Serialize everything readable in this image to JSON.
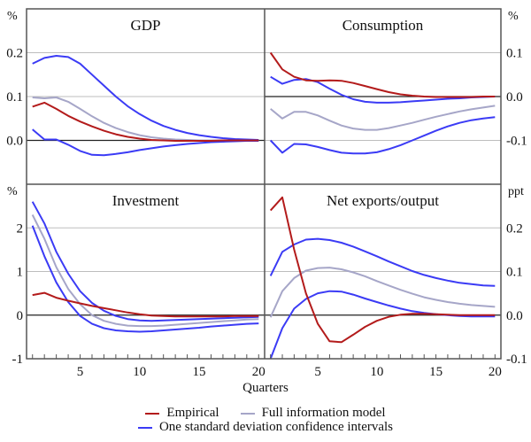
{
  "chart_data": [
    {
      "type": "line",
      "title": "GDP",
      "unit_label": "%",
      "axis_side": "left",
      "x": [
        1,
        2,
        3,
        4,
        5,
        6,
        7,
        8,
        9,
        10,
        11,
        12,
        13,
        14,
        15,
        16,
        17,
        18,
        19,
        20
      ],
      "ylim": [
        -0.1,
        0.3
      ],
      "yticks": [
        0.0,
        0.1,
        0.2
      ],
      "ytick_labels": [
        "0.0",
        "0.1",
        "0.2"
      ],
      "series": [
        {
          "name": "Upper confidence interval",
          "key": "ci",
          "values": [
            0.175,
            0.188,
            0.193,
            0.19,
            0.175,
            0.15,
            0.125,
            0.1,
            0.078,
            0.06,
            0.045,
            0.033,
            0.024,
            0.017,
            0.012,
            0.008,
            0.005,
            0.003,
            0.002,
            0.001
          ]
        },
        {
          "name": "Full information model",
          "key": "model",
          "values": [
            0.098,
            0.096,
            0.098,
            0.088,
            0.072,
            0.055,
            0.04,
            0.028,
            0.019,
            0.012,
            0.007,
            0.004,
            0.002,
            0.001,
            0,
            0,
            0,
            0,
            0,
            0
          ]
        },
        {
          "name": "Empirical",
          "key": "empirical",
          "values": [
            0.077,
            0.086,
            0.072,
            0.056,
            0.043,
            0.032,
            0.022,
            0.014,
            0.008,
            0.004,
            0.001,
            0,
            -0.001,
            -0.001,
            -0.001,
            -0.001,
            0,
            0,
            0,
            0
          ]
        },
        {
          "name": "Lower confidence interval",
          "key": "ci",
          "values": [
            0.025,
            0.002,
            0.002,
            -0.01,
            -0.024,
            -0.033,
            -0.034,
            -0.031,
            -0.027,
            -0.022,
            -0.018,
            -0.014,
            -0.011,
            -0.008,
            -0.006,
            -0.004,
            -0.003,
            -0.002,
            -0.001,
            -0.001
          ]
        }
      ]
    },
    {
      "type": "line",
      "title": "Consumption",
      "unit_label": "%",
      "axis_side": "right",
      "x": [
        1,
        2,
        3,
        4,
        5,
        6,
        7,
        8,
        9,
        10,
        11,
        12,
        13,
        14,
        15,
        16,
        17,
        18,
        19,
        20
      ],
      "ylim": [
        -0.2,
        0.2
      ],
      "yticks": [
        -0.1,
        0.0,
        0.1
      ],
      "ytick_labels": [
        "-0.1",
        "0.0",
        "0.1"
      ],
      "series": [
        {
          "name": "Empirical",
          "key": "empirical",
          "values": [
            0.1,
            0.062,
            0.045,
            0.037,
            0.036,
            0.037,
            0.036,
            0.031,
            0.024,
            0.017,
            0.01,
            0.005,
            0.002,
            0,
            -0.001,
            -0.001,
            -0.001,
            -0.001,
            0,
            0
          ]
        },
        {
          "name": "Upper confidence interval",
          "key": "ci",
          "values": [
            0.045,
            0.029,
            0.038,
            0.04,
            0.033,
            0.018,
            0.004,
            -0.006,
            -0.012,
            -0.014,
            -0.014,
            -0.013,
            -0.011,
            -0.009,
            -0.007,
            -0.005,
            -0.004,
            -0.002,
            -0.001,
            0
          ]
        },
        {
          "name": "Full information model",
          "key": "model",
          "values": [
            -0.028,
            -0.05,
            -0.035,
            -0.035,
            -0.043,
            -0.055,
            -0.066,
            -0.073,
            -0.076,
            -0.076,
            -0.072,
            -0.066,
            -0.06,
            -0.053,
            -0.046,
            -0.04,
            -0.034,
            -0.029,
            -0.025,
            -0.021
          ]
        },
        {
          "name": "Lower confidence interval",
          "key": "ci",
          "values": [
            -0.1,
            -0.128,
            -0.108,
            -0.109,
            -0.115,
            -0.122,
            -0.128,
            -0.13,
            -0.13,
            -0.127,
            -0.12,
            -0.111,
            -0.1,
            -0.089,
            -0.078,
            -0.068,
            -0.06,
            -0.054,
            -0.05,
            -0.047
          ]
        }
      ]
    },
    {
      "type": "line",
      "title": "Investment",
      "unit_label": "%",
      "axis_side": "left",
      "x": [
        1,
        2,
        3,
        4,
        5,
        6,
        7,
        8,
        9,
        10,
        11,
        12,
        13,
        14,
        15,
        16,
        17,
        18,
        19,
        20
      ],
      "ylim": [
        -1,
        3
      ],
      "yticks": [
        -1,
        0,
        1,
        2
      ],
      "ytick_labels": [
        "-1",
        "0",
        "1",
        "2"
      ],
      "series": [
        {
          "name": "Upper confidence interval",
          "key": "ci",
          "values": [
            2.6,
            2.1,
            1.45,
            0.95,
            0.55,
            0.28,
            0.1,
            -0.02,
            -0.09,
            -0.12,
            -0.13,
            -0.12,
            -0.11,
            -0.1,
            -0.09,
            -0.08,
            -0.07,
            -0.06,
            -0.05,
            -0.04
          ]
        },
        {
          "name": "Full information model",
          "key": "model",
          "values": [
            2.3,
            1.75,
            1.1,
            0.6,
            0.25,
            0.0,
            -0.13,
            -0.2,
            -0.24,
            -0.25,
            -0.25,
            -0.24,
            -0.22,
            -0.2,
            -0.18,
            -0.16,
            -0.14,
            -0.12,
            -0.1,
            -0.09
          ]
        },
        {
          "name": "Lower confidence interval",
          "key": "ci",
          "values": [
            2.05,
            1.35,
            0.75,
            0.3,
            -0.02,
            -0.2,
            -0.3,
            -0.35,
            -0.37,
            -0.38,
            -0.37,
            -0.35,
            -0.33,
            -0.31,
            -0.29,
            -0.26,
            -0.24,
            -0.22,
            -0.2,
            -0.19
          ]
        },
        {
          "name": "Empirical",
          "key": "empirical",
          "values": [
            0.46,
            0.51,
            0.4,
            0.33,
            0.27,
            0.21,
            0.16,
            0.11,
            0.06,
            0.02,
            -0.01,
            -0.02,
            -0.03,
            -0.03,
            -0.03,
            -0.03,
            -0.03,
            -0.02,
            -0.02,
            -0.02
          ]
        }
      ]
    },
    {
      "type": "line",
      "title": "Net exports/output",
      "unit_label": "ppt",
      "axis_side": "right",
      "x": [
        1,
        2,
        3,
        4,
        5,
        6,
        7,
        8,
        9,
        10,
        11,
        12,
        13,
        14,
        15,
        16,
        17,
        18,
        19,
        20
      ],
      "ylim": [
        -0.1,
        0.3
      ],
      "yticks": [
        -0.1,
        0.0,
        0.1,
        0.2
      ],
      "ytick_labels": [
        "-0.1",
        "0.0",
        "0.1",
        "0.2"
      ],
      "series": [
        {
          "name": "Upper confidence interval",
          "key": "ci",
          "values": [
            0.09,
            0.145,
            0.162,
            0.173,
            0.175,
            0.172,
            0.166,
            0.157,
            0.146,
            0.135,
            0.123,
            0.112,
            0.101,
            0.092,
            0.085,
            0.079,
            0.074,
            0.071,
            0.068,
            0.067
          ]
        },
        {
          "name": "Full information model",
          "key": "model",
          "values": [
            -0.005,
            0.055,
            0.085,
            0.102,
            0.108,
            0.109,
            0.105,
            0.098,
            0.089,
            0.078,
            0.068,
            0.058,
            0.049,
            0.041,
            0.035,
            0.03,
            0.026,
            0.023,
            0.021,
            0.019
          ]
        },
        {
          "name": "Lower confidence interval",
          "key": "ci",
          "values": [
            -0.1,
            -0.03,
            0.015,
            0.037,
            0.05,
            0.055,
            0.054,
            0.047,
            0.038,
            0.03,
            0.022,
            0.015,
            0.009,
            0.005,
            0.002,
            0,
            -0.002,
            -0.003,
            -0.003,
            -0.003
          ]
        },
        {
          "name": "Empirical",
          "key": "empirical",
          "values": [
            0.24,
            0.27,
            0.15,
            0.05,
            -0.02,
            -0.06,
            -0.062,
            -0.045,
            -0.027,
            -0.013,
            -0.004,
            0.001,
            0.003,
            0.003,
            0.002,
            0.001,
            0,
            0,
            0,
            0
          ]
        }
      ]
    }
  ],
  "xaxis": {
    "label": "Quarters",
    "ticks": [
      5,
      10,
      15,
      20
    ],
    "tick_labels": [
      "5",
      "10",
      "15",
      "20"
    ],
    "range": [
      0.5,
      20.5
    ]
  },
  "legend": {
    "items": [
      {
        "label": "Empirical",
        "key": "empirical",
        "color": "#b31b1b"
      },
      {
        "label": "Full information model",
        "key": "model",
        "color": "#a6a6c8"
      },
      {
        "label": "One standard deviation confidence intervals",
        "key": "ci",
        "color": "#3b3bf5"
      }
    ],
    "placement": "bottom-center"
  },
  "colors": {
    "empirical": "#b31b1b",
    "model": "#a6a6c8",
    "ci": "#3b3bf5",
    "grid": "#bdbdbd",
    "zero": "#222222",
    "frame": "#555555"
  }
}
